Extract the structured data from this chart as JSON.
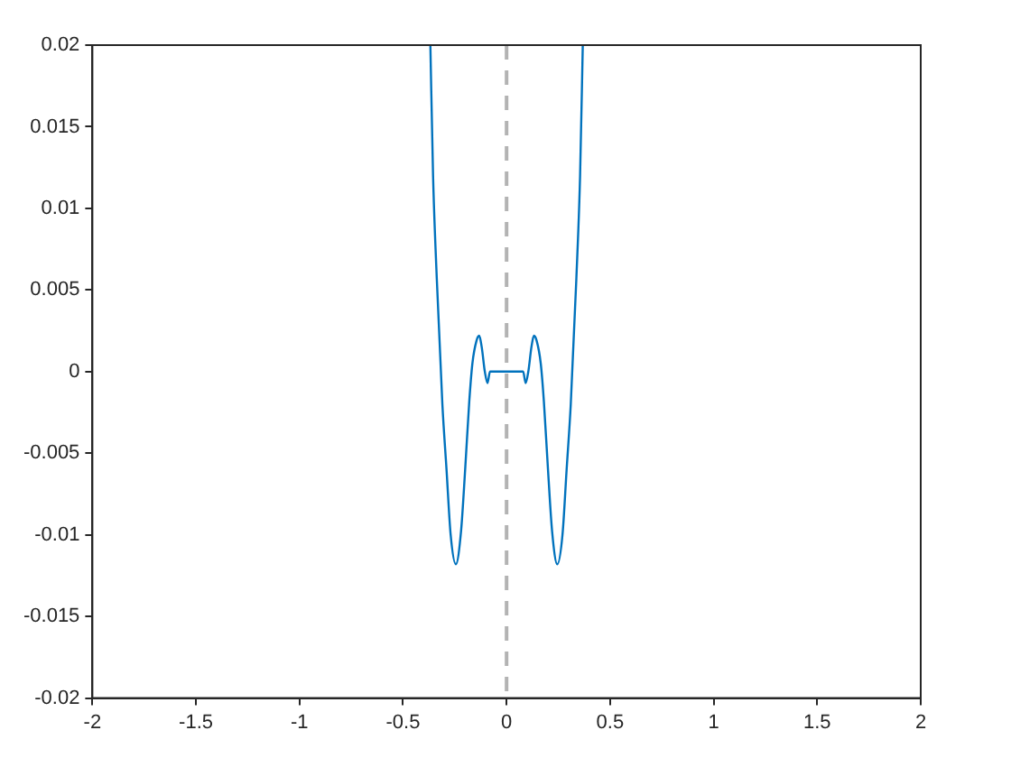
{
  "chart_data": {
    "type": "line",
    "line_style": "solid",
    "marker": "none",
    "grid": false,
    "legend": false,
    "xlim": [
      -2,
      2
    ],
    "xticks": [
      -2,
      -1.5,
      -1,
      -0.5,
      0,
      0.5,
      1,
      1.5,
      2
    ],
    "ylim": [
      -0.02,
      0.02
    ],
    "yticks": [
      -0.02,
      -0.015,
      -0.01,
      -0.005,
      0,
      0.005,
      0.01,
      0.015,
      0.02
    ],
    "ref_lines": [
      {
        "axis": "x",
        "value": 0,
        "color": "#b3b3b3",
        "line_style": "dashed"
      }
    ],
    "series": [
      {
        "color": "#0072bd",
        "x": [
          -0.368,
          -0.355,
          -0.337,
          -0.31,
          -0.29,
          -0.27,
          -0.245,
          -0.22,
          -0.2,
          -0.18,
          -0.165,
          -0.145,
          -0.132,
          -0.12,
          -0.105,
          -0.092,
          -0.08,
          -0.06,
          0,
          0.06,
          0.08,
          0.092,
          0.105,
          0.12,
          0.132,
          0.145,
          0.165,
          0.18,
          0.2,
          0.22,
          0.245,
          0.27,
          0.29,
          0.31,
          0.337,
          0.355,
          0.368
        ],
        "values": [
          0.02,
          0.012,
          0.0057,
          -0.002,
          -0.006,
          -0.01,
          -0.0118,
          -0.0098,
          -0.006,
          -0.0018,
          0.0005,
          0.0019,
          0.0022,
          0.0015,
          0.0,
          -0.0007,
          0.0,
          0.0,
          0.0,
          0.0,
          0.0,
          -0.0007,
          0.0,
          0.0015,
          0.0022,
          0.0019,
          0.0005,
          -0.0018,
          -0.006,
          -0.0098,
          -0.0118,
          -0.01,
          -0.006,
          -0.002,
          0.0057,
          0.012,
          0.02
        ]
      }
    ]
  }
}
